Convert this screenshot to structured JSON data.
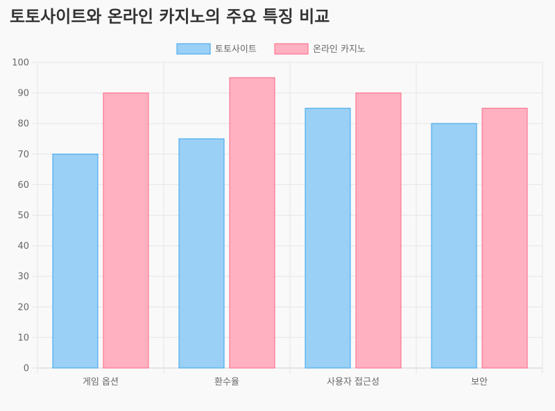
{
  "page": {
    "title": "토토사이트와 온라인 카지노의 주요 특징 비교"
  },
  "chart_data": {
    "type": "bar",
    "title": "",
    "xlabel": "",
    "ylabel": "",
    "categories": [
      "게임 옵션",
      "환수율",
      "사용자 접근성",
      "보안"
    ],
    "series": [
      {
        "name": "토토사이트",
        "values": [
          70,
          75,
          85,
          80
        ],
        "fill": "#9ad0f5",
        "stroke": "#36a2eb"
      },
      {
        "name": "온라인 카지노",
        "values": [
          90,
          95,
          90,
          85
        ],
        "fill": "#ffb1c1",
        "stroke": "#ff6384"
      }
    ],
    "ylim": [
      0,
      100
    ],
    "yticks": [
      0,
      10,
      20,
      30,
      40,
      50,
      60,
      70,
      80,
      90,
      100
    ],
    "grid": true,
    "legend_position": "top"
  }
}
